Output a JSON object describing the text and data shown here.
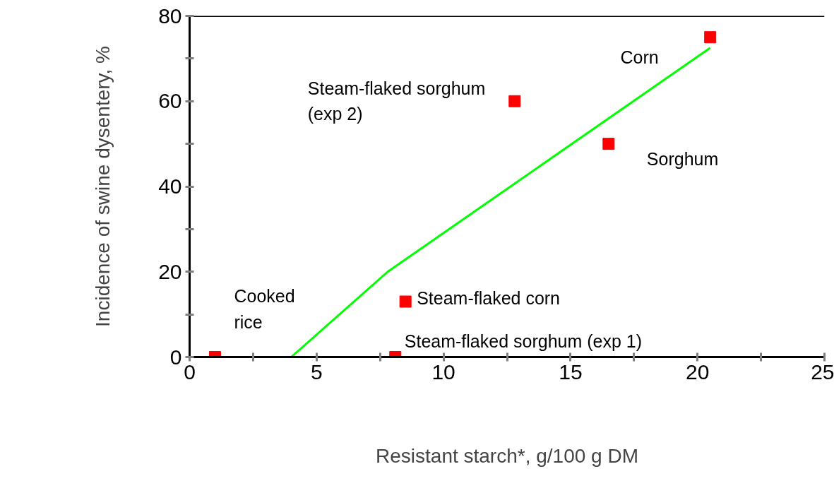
{
  "chart_data": {
    "type": "scatter",
    "xlabel": "Resistant starch*, g/100 g DM",
    "ylabel": "Incidence of swine dysentery, %",
    "xlim": [
      0,
      25
    ],
    "ylim": [
      0,
      80
    ],
    "xticks": [
      0,
      {
        "value": 2.5,
        "label": null
      },
      5,
      {
        "value": 7.5,
        "label": null
      },
      10,
      {
        "value": 12.5,
        "label": null
      },
      15,
      {
        "value": 17.5,
        "label": null
      },
      20,
      {
        "value": 22.5,
        "label": null
      },
      25
    ],
    "yticks": [
      0,
      {
        "value": 10,
        "label": null
      },
      20,
      {
        "value": 30,
        "label": null
      },
      40,
      {
        "value": 50,
        "label": null
      },
      60,
      {
        "value": 70,
        "label": null
      },
      80
    ],
    "grid": false,
    "marker": "square",
    "series": [
      {
        "color": "#ff0000",
        "x": [
          1.0,
          8.1,
          8.5,
          12.8,
          16.5,
          20.5
        ],
        "values": [
          0,
          0,
          13,
          60,
          50,
          75
        ]
      },
      {
        "type": "line",
        "color": "#00ff00",
        "marker": "none",
        "x": [
          4.0,
          7.8,
          20.5
        ],
        "values": [
          0,
          20,
          72.5
        ]
      }
    ],
    "annotations": [
      {
        "text": "Steam-flaked sorghum\n(exp 2)",
        "x": 12.8,
        "y": 60
      },
      "Corn",
      {
        "text": "Sorghum",
        "x": 16.5,
        "y": 50
      },
      {
        "text": "Cooked\nrice",
        "x": 1.0,
        "y": 0
      },
      {
        "text": "Steam-flaked corn",
        "x": 8.5,
        "y": 13
      },
      {
        "text": "Steam-flaked sorghum (exp 1)",
        "x": 8.1,
        "y": 0
      }
    ]
  }
}
